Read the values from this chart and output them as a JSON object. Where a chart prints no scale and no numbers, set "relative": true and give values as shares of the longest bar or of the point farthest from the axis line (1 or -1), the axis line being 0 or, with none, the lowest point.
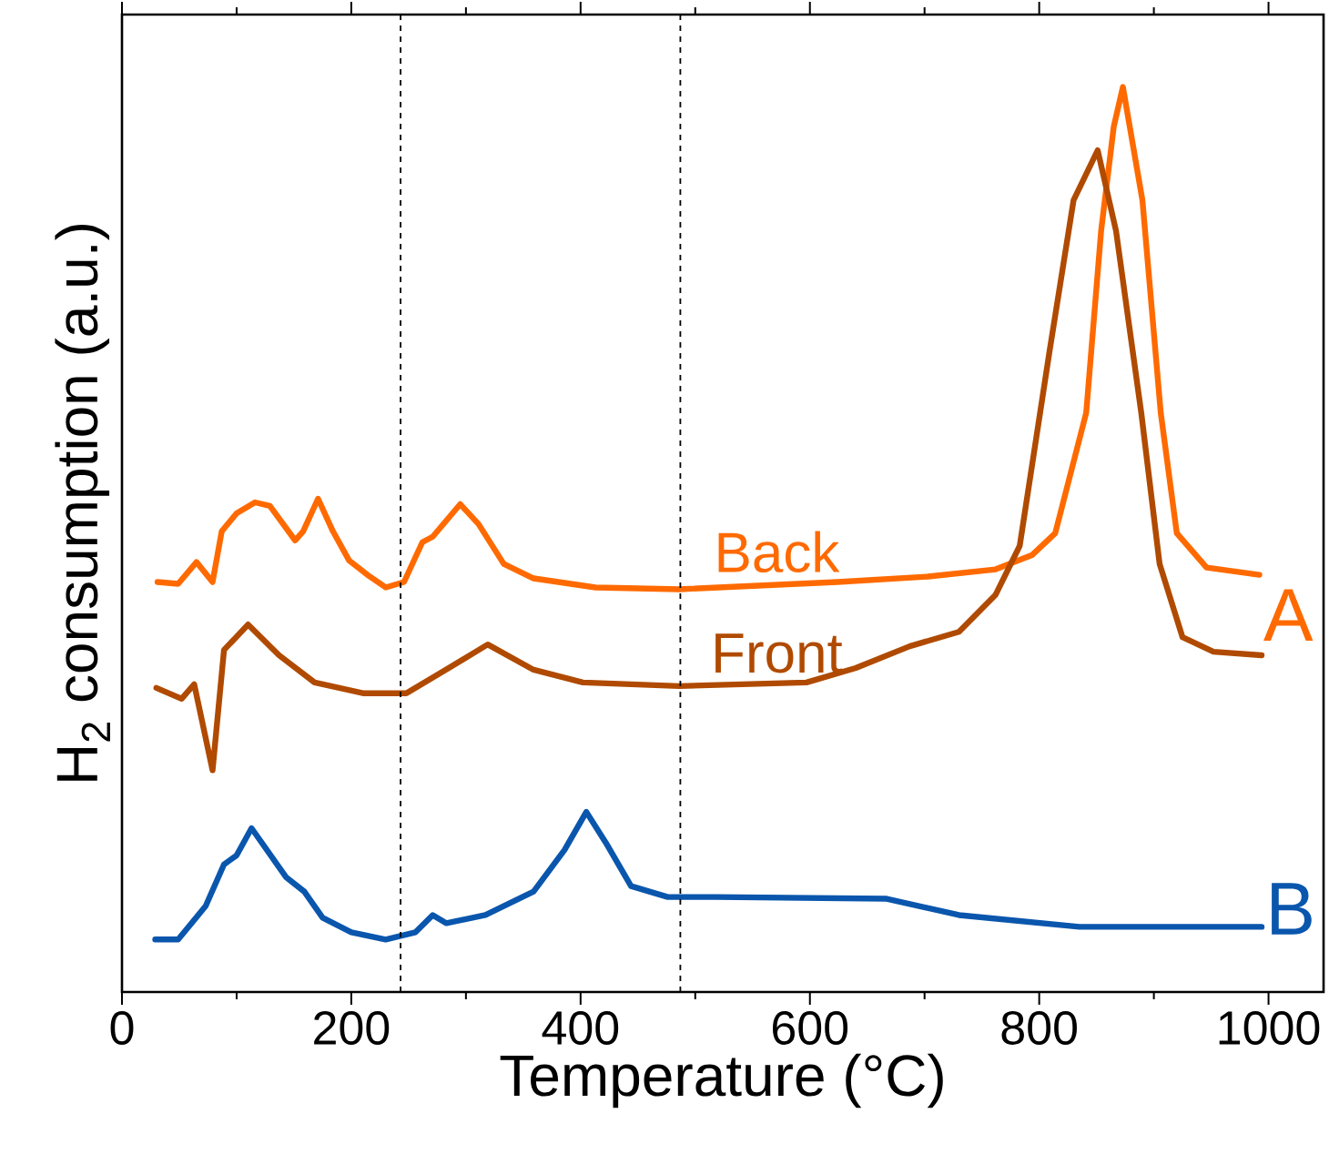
{
  "chart_data": {
    "type": "line",
    "xlabel": "Temperature (°C)",
    "ylabel": "H$_{2}$ consumption (a.u.)",
    "relative": true,
    "xlim": [
      0,
      1048
    ],
    "xticks": [
      0,
      200,
      400,
      600,
      800,
      1000
    ],
    "grid": false,
    "marker": "none",
    "line_style": "solid",
    "series": [
      {
        "name": "Back",
        "color": "#ff6a00",
        "x": [
          31,
          49,
          65,
          79,
          87,
          100,
          116,
          129,
          151,
          158,
          171,
          184,
          198,
          214,
          230,
          246,
          262,
          271,
          295,
          311,
          333,
          359,
          413,
          486,
          624,
          703,
          762,
          794,
          814,
          841,
          854,
          865,
          873,
          890,
          906,
          920,
          946,
          992
        ],
        "values": [
          0.453,
          0.451,
          0.475,
          0.453,
          0.509,
          0.529,
          0.541,
          0.537,
          0.499,
          0.509,
          0.545,
          0.509,
          0.477,
          0.461,
          0.447,
          0.453,
          0.497,
          0.503,
          0.539,
          0.517,
          0.473,
          0.457,
          0.447,
          0.445,
          0.453,
          0.459,
          0.467,
          0.483,
          0.507,
          0.64,
          0.841,
          0.956,
          1.0,
          0.875,
          0.64,
          0.507,
          0.469,
          0.461
        ]
      },
      {
        "name": "Front",
        "color": "#b04a00",
        "x": [
          30,
          52,
          63,
          79,
          89,
          110,
          137,
          168,
          211,
          248,
          285,
          319,
          359,
          402,
          486,
          597,
          640,
          687,
          730,
          762,
          783,
          809,
          830,
          851,
          867,
          889,
          905,
          925,
          952,
          994
        ],
        "values": [
          0.336,
          0.324,
          0.34,
          0.245,
          0.378,
          0.406,
          0.372,
          0.342,
          0.33,
          0.33,
          0.358,
          0.384,
          0.356,
          0.342,
          0.338,
          0.342,
          0.358,
          0.382,
          0.398,
          0.439,
          0.493,
          0.708,
          0.875,
          0.93,
          0.841,
          0.64,
          0.473,
          0.392,
          0.376,
          0.372
        ]
      },
      {
        "name": "B",
        "color": "#0a56ad",
        "x": [
          29,
          49,
          73,
          89,
          100,
          113,
          143,
          159,
          175,
          200,
          230,
          256,
          271,
          283,
          317,
          359,
          386,
          405,
          422,
          444,
          476,
          518,
          667,
          730,
          835,
          994
        ],
        "values": [
          0.058,
          0.058,
          0.095,
          0.141,
          0.151,
          0.181,
          0.127,
          0.111,
          0.082,
          0.066,
          0.058,
          0.066,
          0.085,
          0.076,
          0.085,
          0.111,
          0.157,
          0.199,
          0.165,
          0.117,
          0.105,
          0.105,
          0.103,
          0.085,
          0.072,
          0.072
        ]
      }
    ],
    "ref_lines": [
      {
        "axis": "x",
        "value": 243,
        "color": "#000000",
        "line_style": "dashed"
      },
      {
        "axis": "x",
        "value": 487,
        "color": "#000000",
        "line_style": "dashed"
      }
    ],
    "annotations": [
      "A"
    ]
  }
}
